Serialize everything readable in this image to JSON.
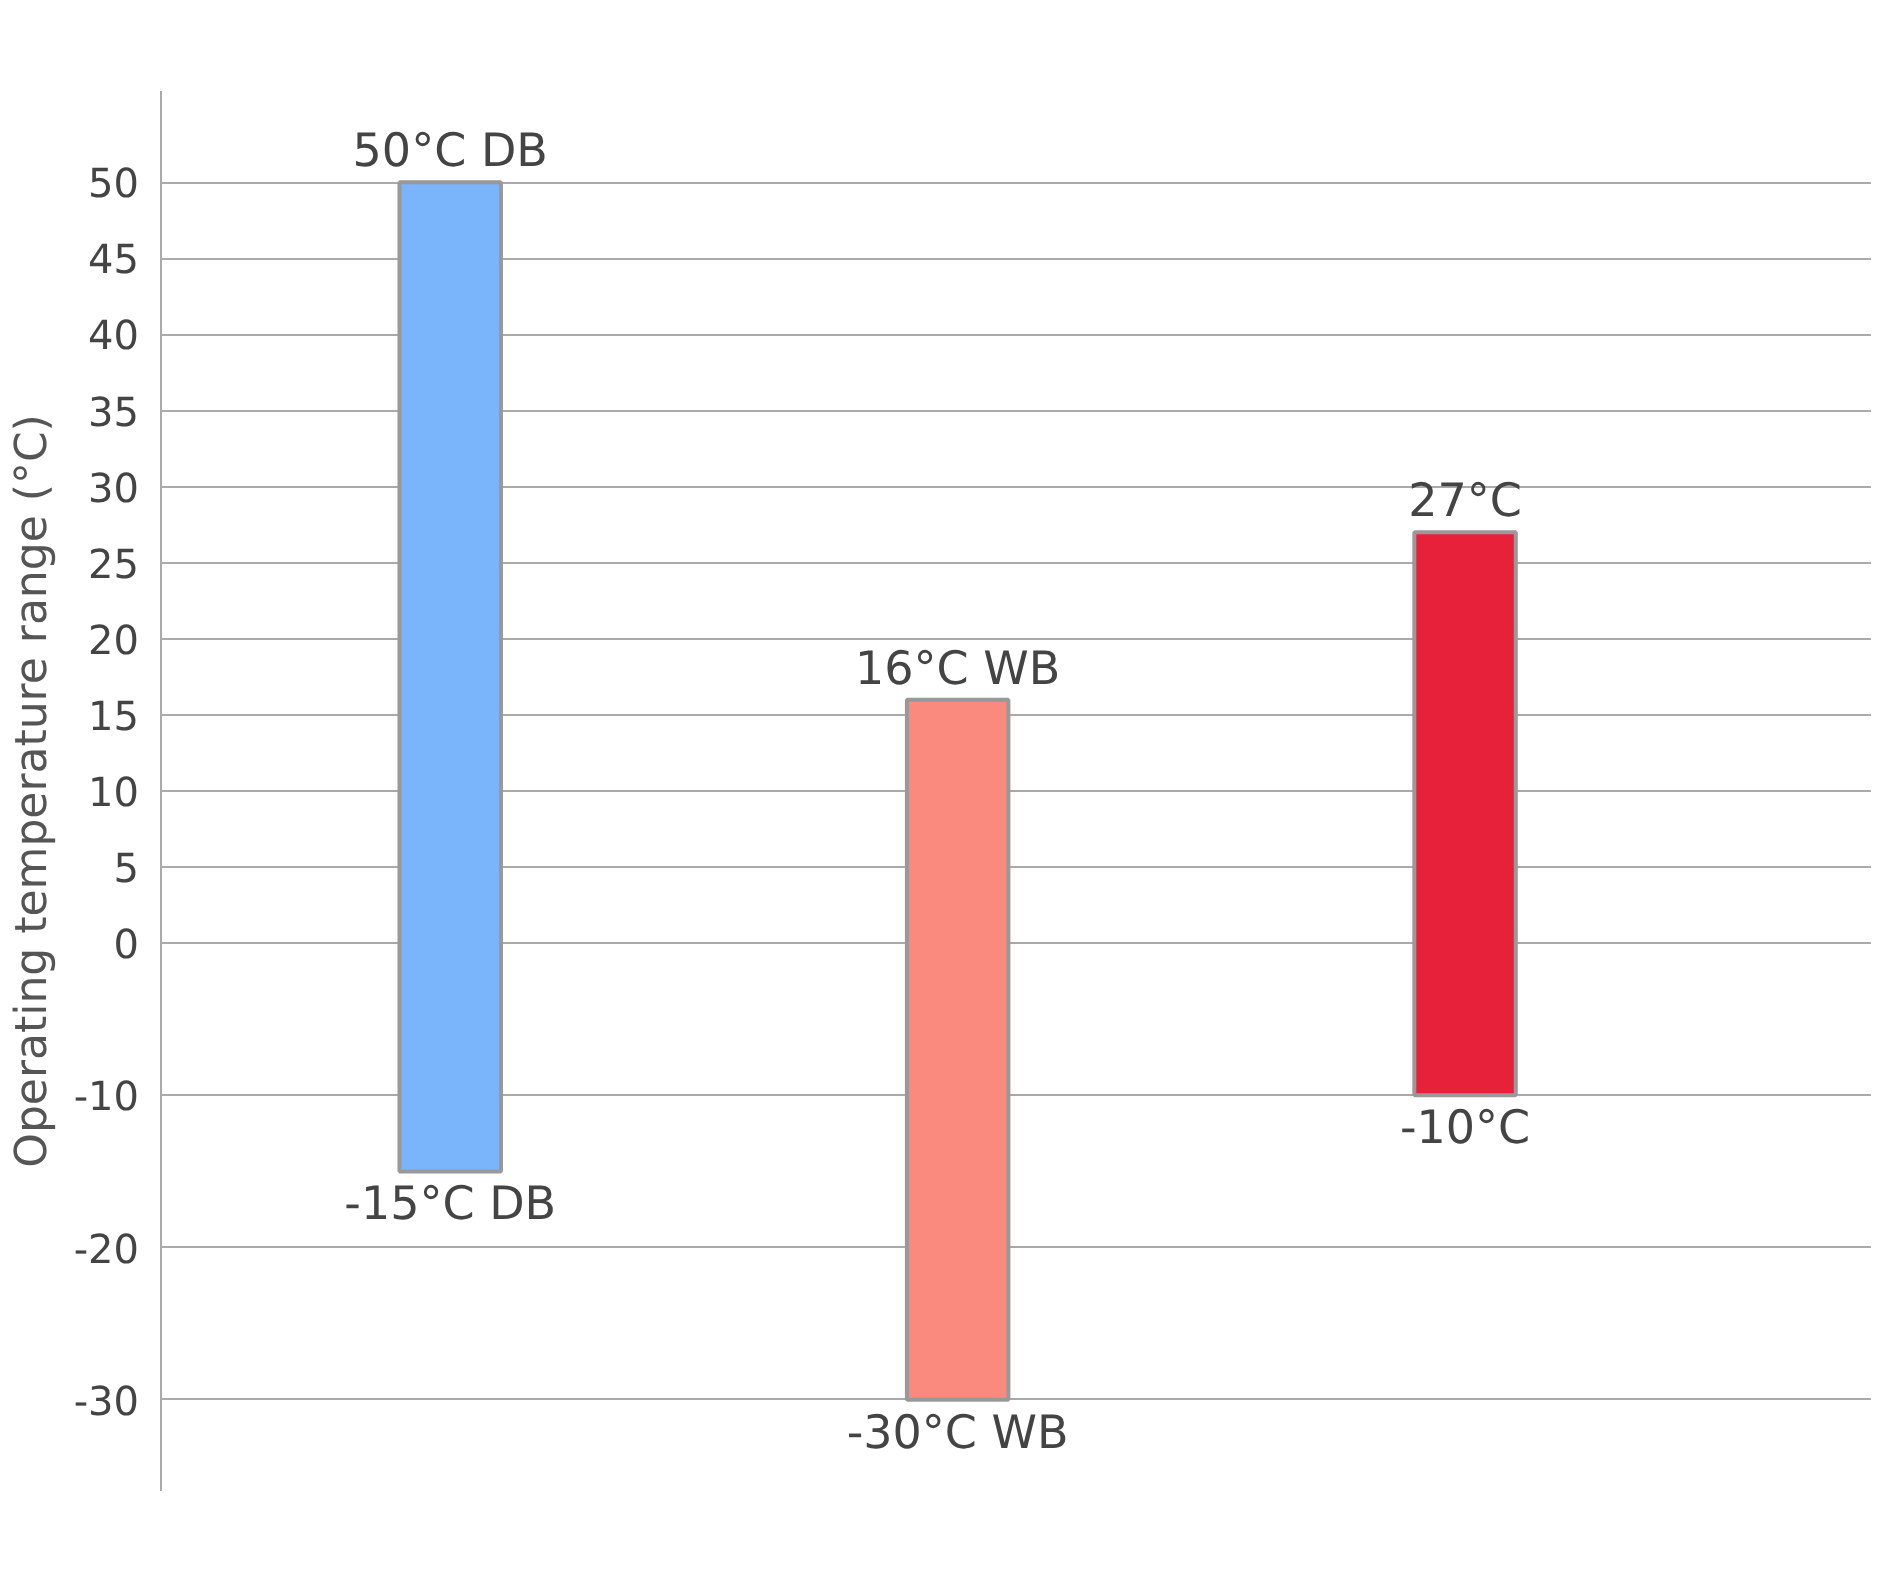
{
  "chart_data": {
    "type": "bar",
    "ylabel": "Operating temperature range (°C)",
    "categories": [
      null,
      null,
      null
    ],
    "base": [
      -15,
      -30,
      -10
    ],
    "values": [
      65,
      46,
      37
    ],
    "colors": [
      "#7ab4fa",
      "#fb8a7e",
      "#e8213b"
    ],
    "ylim": [
      -36,
      56
    ],
    "yticks": [
      -30,
      -20,
      -10,
      0,
      5,
      10,
      15,
      20,
      25,
      30,
      35,
      40,
      45,
      50
    ],
    "grid": "y",
    "annotations": [
      "50°C DB",
      "-15°C DB",
      "16°C WB",
      "-30°C WB",
      "27°C",
      "-10°C"
    ]
  }
}
